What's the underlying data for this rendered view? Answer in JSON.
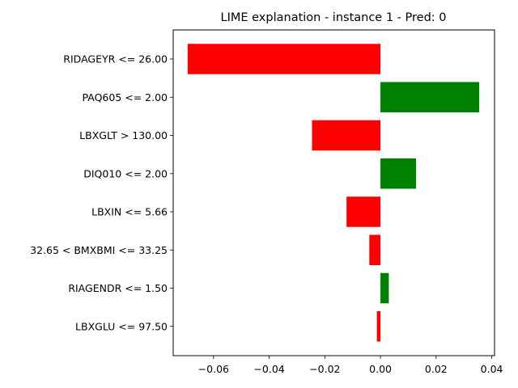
{
  "chart_data": {
    "type": "bar",
    "orientation": "horizontal",
    "title": "LIME explanation - instance 1 - Pred: 0",
    "xlabel": "",
    "ylabel": "",
    "categories": [
      "RIDAGEYR <= 26.00",
      "PAQ605 <= 2.00",
      "LBXGLT > 130.00",
      "DIQ010 <= 2.00",
      "LBXIN <= 5.66",
      "32.65 < BMXBMI <= 33.25",
      "RIAGENDR <= 1.50",
      "LBXGLU <= 97.50"
    ],
    "values": [
      -0.0693,
      0.0355,
      -0.0246,
      0.0128,
      -0.0122,
      -0.004,
      0.003,
      -0.0013
    ],
    "xlim": [
      -0.0745,
      0.041
    ],
    "xticks": [
      -0.06,
      -0.04,
      -0.02,
      0.0,
      0.02,
      0.04
    ],
    "xtick_labels": [
      "−0.06",
      "−0.04",
      "−0.02",
      "0.00",
      "0.02",
      "0.04"
    ],
    "positive_color": "#008000",
    "negative_color": "#ff0000",
    "grid": false,
    "legend": "none"
  }
}
